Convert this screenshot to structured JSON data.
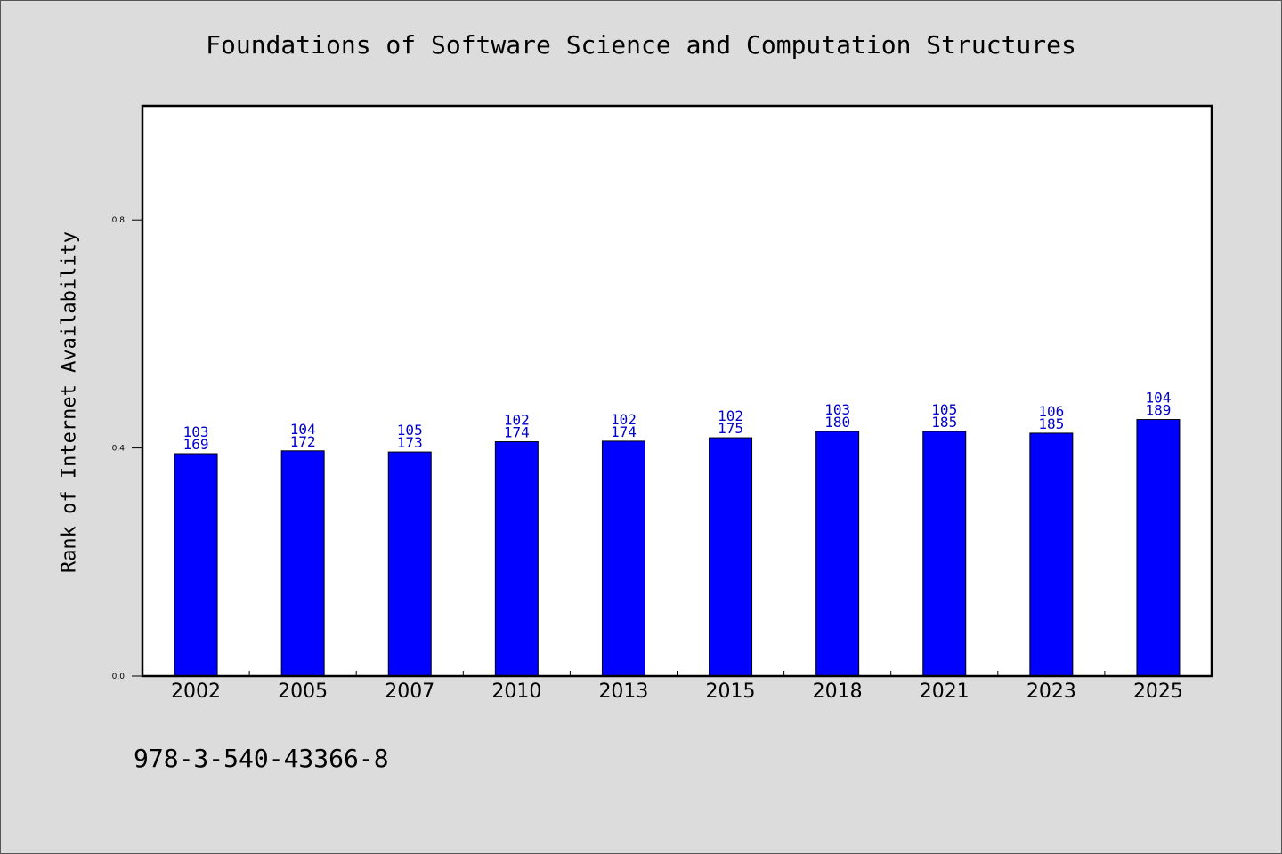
{
  "chart_data": {
    "type": "bar",
    "title": "Foundations of Software Science and Computation Structures",
    "ylabel": "Rank of Internet Availability",
    "xlabel": "",
    "categories": [
      "2002",
      "2005",
      "2007",
      "2010",
      "2013",
      "2015",
      "2018",
      "2021",
      "2023",
      "2025"
    ],
    "values": [
      0.39,
      0.395,
      0.393,
      0.411,
      0.412,
      0.418,
      0.429,
      0.429,
      0.426,
      0.45
    ],
    "label_top": [
      "103",
      "104",
      "105",
      "102",
      "102",
      "102",
      "103",
      "105",
      "106",
      "104"
    ],
    "label_bottom": [
      "169",
      "172",
      "173",
      "174",
      "174",
      "175",
      "180",
      "185",
      "185",
      "189"
    ],
    "ylim": [
      0,
      1.0
    ],
    "yticks": [
      "0.0",
      "0.4",
      "0.8"
    ],
    "bar_color": "#0000ff",
    "label_color": "#0000cc",
    "grid": false
  },
  "footnote": "978-3-540-43366-8"
}
